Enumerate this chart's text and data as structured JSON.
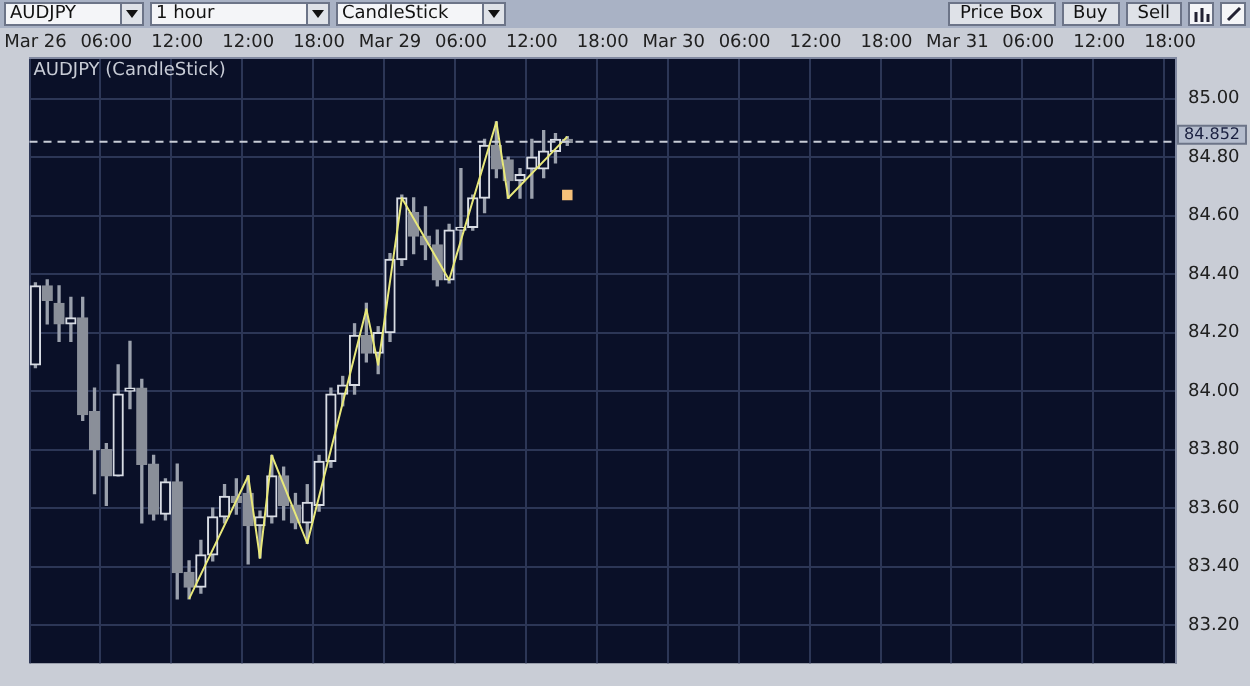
{
  "chart_data": {
    "type": "candlestick",
    "title": "AUDJPY (CandleStick)",
    "annotations": [
      "AUDJPY",
      "1 hour",
      "CandleStick",
      "Price Box",
      "Buy",
      "Sell"
    ],
    "categories": [
      "Mar 26",
      null,
      null,
      null,
      null,
      null,
      "06:00",
      null,
      null,
      null,
      null,
      null,
      "12:00",
      null,
      null,
      null,
      null,
      null,
      "12:00",
      null,
      null,
      null,
      null,
      null,
      "18:00",
      null,
      null,
      null,
      null,
      null,
      "Mar 29",
      null,
      null,
      null,
      null,
      null,
      "06:00",
      null,
      null,
      null,
      null,
      null,
      "12:00",
      null,
      null,
      null,
      null,
      null,
      "18:00",
      null,
      null,
      null,
      null,
      null,
      "Mar 30",
      null,
      null,
      null,
      null,
      null,
      "06:00",
      null,
      null,
      null,
      null,
      null,
      "12:00",
      null,
      null,
      null,
      null,
      null,
      "18:00",
      null,
      null,
      null,
      null,
      null,
      "Mar 31",
      null,
      null,
      null,
      null,
      null,
      "06:00",
      null,
      null,
      null,
      null,
      null,
      "12:00",
      null,
      null,
      null,
      null,
      null,
      "18:00"
    ],
    "ohlc": [
      [
        84.09,
        84.37,
        84.08,
        84.36
      ],
      [
        84.36,
        84.38,
        84.23,
        84.31
      ],
      [
        84.3,
        84.36,
        84.17,
        84.23
      ],
      [
        84.23,
        84.32,
        84.17,
        84.25
      ],
      [
        84.25,
        84.32,
        83.9,
        83.92
      ],
      [
        83.93,
        84.01,
        83.65,
        83.8
      ],
      [
        83.8,
        83.82,
        83.61,
        83.71
      ],
      [
        83.71,
        84.09,
        83.71,
        83.99
      ],
      [
        84.0,
        84.17,
        83.94,
        84.01
      ],
      [
        84.01,
        84.04,
        83.55,
        83.75
      ],
      [
        83.75,
        83.78,
        83.56,
        83.58
      ],
      [
        83.58,
        83.7,
        83.56,
        83.69
      ],
      [
        83.69,
        83.75,
        83.29,
        83.38
      ],
      [
        83.38,
        83.42,
        83.29,
        83.33
      ],
      [
        83.33,
        83.49,
        83.31,
        83.44
      ],
      [
        83.44,
        83.6,
        83.42,
        83.57
      ],
      [
        83.57,
        83.68,
        83.55,
        83.64
      ],
      [
        83.64,
        83.7,
        83.58,
        83.62
      ],
      [
        83.65,
        83.71,
        83.41,
        83.54
      ],
      [
        83.54,
        83.59,
        83.43,
        83.57
      ],
      [
        83.57,
        83.78,
        83.55,
        83.71
      ],
      [
        83.71,
        83.74,
        83.56,
        83.61
      ],
      [
        83.61,
        83.65,
        83.53,
        83.55
      ],
      [
        83.55,
        83.68,
        83.48,
        83.62
      ],
      [
        83.61,
        83.78,
        83.59,
        83.76
      ],
      [
        83.76,
        84.01,
        83.74,
        83.99
      ],
      [
        83.99,
        84.05,
        83.95,
        84.02
      ],
      [
        84.02,
        84.23,
        83.99,
        84.19
      ],
      [
        84.19,
        84.3,
        84.1,
        84.13
      ],
      [
        84.13,
        84.22,
        84.06,
        84.2
      ],
      [
        84.2,
        84.47,
        84.17,
        84.45
      ],
      [
        84.45,
        84.67,
        84.43,
        84.66
      ],
      [
        84.61,
        84.66,
        84.47,
        84.53
      ],
      [
        84.53,
        84.63,
        84.45,
        84.5
      ],
      [
        84.5,
        84.55,
        84.36,
        84.38
      ],
      [
        84.38,
        84.57,
        84.37,
        84.55
      ],
      [
        84.55,
        84.76,
        84.45,
        84.56
      ],
      [
        84.56,
        84.67,
        84.55,
        84.66
      ],
      [
        84.66,
        84.86,
        84.61,
        84.84
      ],
      [
        84.84,
        84.92,
        84.73,
        84.76
      ],
      [
        84.79,
        84.8,
        84.66,
        84.72
      ],
      [
        84.72,
        84.76,
        84.66,
        84.74
      ],
      [
        84.76,
        84.86,
        84.66,
        84.8
      ],
      [
        84.76,
        84.89,
        84.73,
        84.82
      ],
      [
        84.82,
        84.88,
        84.78,
        84.86
      ],
      [
        84.86,
        84.87,
        84.84,
        84.85
      ],
      null,
      null,
      null,
      null,
      null,
      null,
      null,
      null,
      null,
      null,
      null,
      null,
      null,
      null,
      null,
      null,
      null,
      null,
      null,
      null,
      null,
      null,
      null,
      null,
      null,
      null,
      null,
      null,
      null,
      null,
      null,
      null,
      null,
      null,
      null,
      null,
      null,
      null,
      null,
      null,
      null,
      null,
      null,
      null,
      null,
      null,
      null,
      null,
      null,
      null,
      null
    ],
    "series": [
      {
        "type": "line",
        "color": "#e8e87a",
        "values": [
          null,
          null,
          null,
          null,
          null,
          null,
          null,
          null,
          null,
          null,
          null,
          null,
          null,
          83.29,
          null,
          null,
          null,
          null,
          83.71,
          83.43,
          83.78,
          null,
          null,
          83.48,
          null,
          null,
          null,
          null,
          84.28,
          84.09,
          null,
          84.66,
          null,
          null,
          null,
          84.38,
          null,
          null,
          null,
          84.92,
          84.66,
          null,
          null,
          null,
          null,
          84.87,
          null,
          null,
          null,
          null,
          null,
          null,
          null,
          null,
          null,
          null,
          null,
          null,
          null,
          null,
          null,
          null,
          null,
          null,
          null,
          null,
          null,
          null,
          null,
          null,
          null,
          null,
          null,
          null,
          null,
          null,
          null,
          null,
          null,
          null,
          null,
          null,
          null,
          null,
          null,
          null,
          null,
          null,
          null,
          null,
          null,
          null,
          null,
          null,
          null,
          null,
          null
        ]
      },
      {
        "type": "scatter",
        "color": "#f5c07a",
        "marker": "square",
        "values": [
          null,
          null,
          null,
          null,
          null,
          null,
          null,
          null,
          null,
          null,
          null,
          null,
          null,
          null,
          null,
          null,
          null,
          null,
          null,
          null,
          null,
          null,
          null,
          null,
          null,
          null,
          null,
          null,
          null,
          null,
          null,
          null,
          null,
          null,
          null,
          null,
          null,
          null,
          null,
          null,
          null,
          null,
          null,
          null,
          null,
          84.67,
          null,
          null,
          null,
          null,
          null,
          null,
          null,
          null,
          null,
          null,
          null,
          null,
          null,
          null,
          null,
          null,
          null,
          null,
          null,
          null,
          null,
          null,
          null,
          null,
          null,
          null,
          null,
          null,
          null,
          null,
          null,
          null,
          null,
          null,
          null,
          null,
          null,
          null,
          null,
          null,
          null,
          null,
          null,
          null,
          null,
          null,
          null,
          null,
          null,
          null,
          null
        ]
      }
    ],
    "ylim": [
      83.07,
      85.14
    ],
    "yticks": [
      {
        "value": 83.2,
        "label": "83.20"
      },
      {
        "value": 83.4,
        "label": "83.40"
      },
      {
        "value": 83.6,
        "label": "83.60"
      },
      {
        "value": 83.8,
        "label": "83.80"
      },
      {
        "value": 84,
        "label": "84.00"
      },
      {
        "value": 84.2,
        "label": "84.20"
      },
      {
        "value": 84.4,
        "label": "84.40"
      },
      {
        "value": 84.6,
        "label": "84.60"
      },
      {
        "value": 84.8,
        "label": "84.80"
      },
      {
        "value": 85,
        "label": "85.00"
      }
    ],
    "ref_lines": [
      {
        "axis": "y",
        "value": 84.852,
        "label": "84.852",
        "color": "#c8ccd6",
        "line_style": "dashed"
      }
    ],
    "grid": true,
    "legend": false
  }
}
